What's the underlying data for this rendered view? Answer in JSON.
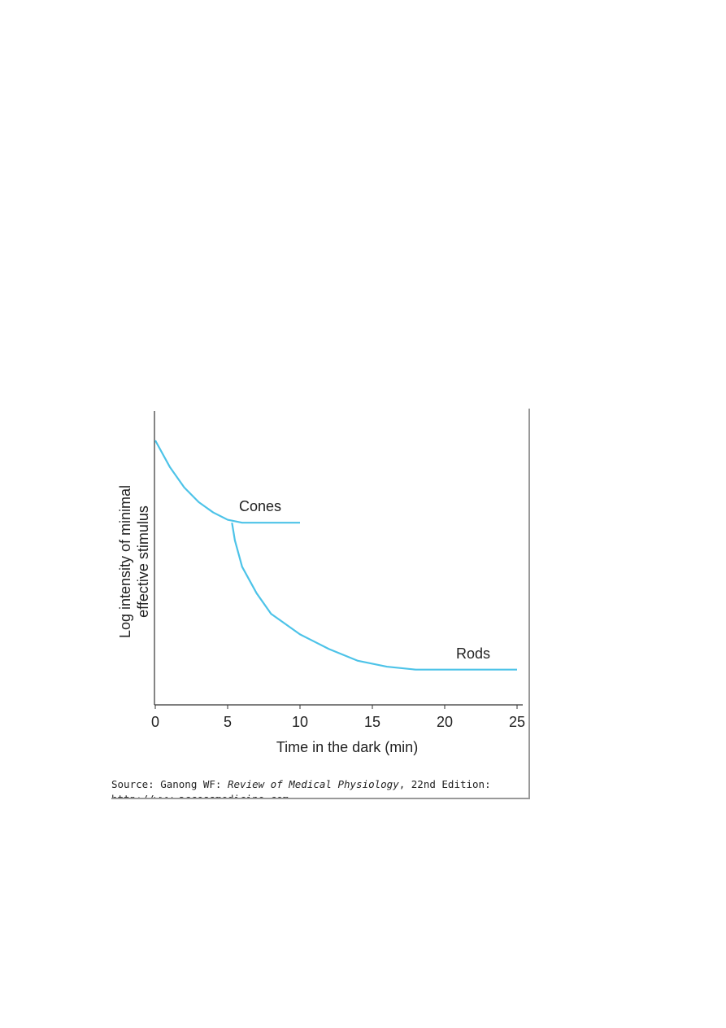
{
  "chart_data": {
    "type": "line",
    "xlabel": "Time in the dark (min)",
    "ylabel": [
      "Log intensity of minimal",
      "effective stimulus"
    ],
    "xlim": [
      0,
      25
    ],
    "xticks": [
      0,
      5,
      10,
      15,
      20,
      25
    ],
    "ylim": [
      0,
      10
    ],
    "series": [
      {
        "name": "Cones",
        "color": "#4dc3e8",
        "x": [
          0,
          1,
          2,
          3,
          4,
          5,
          6,
          8,
          10
        ],
        "values": [
          9.0,
          8.1,
          7.4,
          6.9,
          6.55,
          6.3,
          6.2,
          6.2,
          6.2
        ]
      },
      {
        "name": "Rods",
        "color": "#4dc3e8",
        "x": [
          5.3,
          5.5,
          6,
          7,
          8,
          10,
          12,
          14,
          16,
          18,
          19,
          25
        ],
        "values": [
          6.2,
          5.6,
          4.7,
          3.8,
          3.1,
          2.4,
          1.9,
          1.5,
          1.3,
          1.2,
          1.2,
          1.2
        ]
      }
    ],
    "source": {
      "prefix": "Source: Ganong WF:",
      "title": "Review of Medical Physiology",
      "edition": ", 22nd Edition:",
      "url": "http://www.accessmedicine.com"
    }
  }
}
